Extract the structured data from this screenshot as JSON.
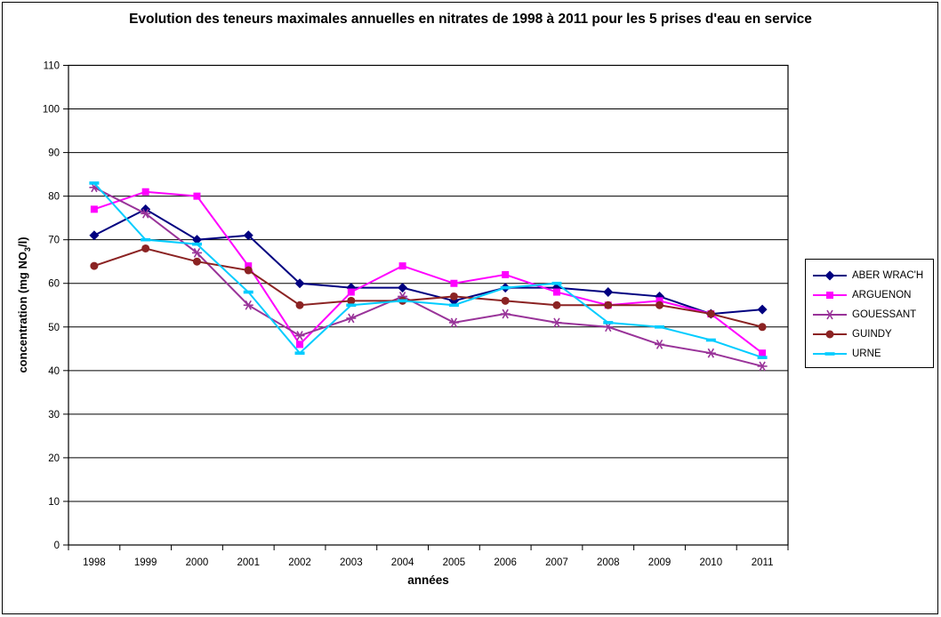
{
  "chart_data": {
    "type": "line",
    "title": "Evolution des teneurs maximales annuelles en nitrates de 1998 à 2011 pour les 5 prises d'eau en service",
    "xlabel": "années",
    "ylabel": {
      "prefix": "concentration (mg NO",
      "sub": "3",
      "suffix": "/l)"
    },
    "categories": [
      "1998",
      "1999",
      "2000",
      "2001",
      "2002",
      "2003",
      "2004",
      "2005",
      "2006",
      "2007",
      "2008",
      "2009",
      "2010",
      "2011"
    ],
    "ylim": [
      0,
      110
    ],
    "ytick_step": 10,
    "grid": "horizontal",
    "legend_position": "right",
    "axis_color": "#000000",
    "background_color": "#ffffff",
    "series": [
      {
        "name": "ABER WRAC'H",
        "color": "#000080",
        "marker": "diamond",
        "values": [
          71,
          77,
          70,
          71,
          60,
          59,
          59,
          56,
          59,
          59,
          58,
          57,
          53,
          54
        ]
      },
      {
        "name": "ARGUENON",
        "color": "#FF00FF",
        "marker": "square",
        "values": [
          77,
          81,
          80,
          64,
          46,
          58,
          64,
          60,
          62,
          58,
          55,
          56,
          53,
          44
        ]
      },
      {
        "name": "GOUESSANT",
        "color": "#993399",
        "marker": "asterisk",
        "values": [
          82,
          76,
          67,
          55,
          48,
          52,
          57,
          51,
          53,
          51,
          50,
          46,
          44,
          41
        ]
      },
      {
        "name": "GUINDY",
        "color": "#8B2323",
        "marker": "circle",
        "values": [
          64,
          68,
          65,
          63,
          55,
          56,
          56,
          57,
          56,
          55,
          55,
          55,
          53,
          50
        ]
      },
      {
        "name": "URNE",
        "color": "#00CCFF",
        "marker": "dash",
        "values": [
          83,
          70,
          69,
          58,
          44,
          55,
          56,
          55,
          59,
          60,
          51,
          50,
          47,
          43
        ]
      }
    ]
  }
}
